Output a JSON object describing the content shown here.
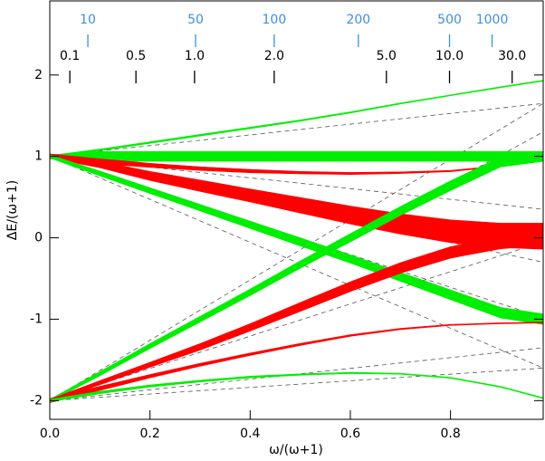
{
  "chart_data": {
    "type": "line",
    "xlabel": "ω/(ω+1)",
    "ylabel": "ΔE/(ω+1)",
    "xlim": [
      0,
      0.985
    ],
    "ylim": [
      -2.23,
      2.91
    ],
    "xticks": [
      {
        "value": 0,
        "label": "0.0"
      },
      {
        "value": 0.2,
        "label": "0.2"
      },
      {
        "value": 0.4,
        "label": "0.4"
      },
      {
        "value": 0.6,
        "label": "0.6"
      },
      {
        "value": 0.8,
        "label": "0.8"
      }
    ],
    "yticks": [
      -2,
      -1,
      0,
      1,
      2
    ],
    "top_ticks": {
      "color": "#000000",
      "ticks": [
        {
          "value": 0.04,
          "label": "0.1"
        },
        {
          "value": 0.172,
          "label": "0.5"
        },
        {
          "value": 0.289,
          "label": "1.0"
        },
        {
          "value": 0.448,
          "label": "2.0"
        },
        {
          "value": 0.672,
          "label": "5.0"
        },
        {
          "value": 0.798,
          "label": "10.0"
        },
        {
          "value": 0.923,
          "label": "30.0"
        }
      ]
    },
    "top_ticks2": {
      "color": "#3d8fe0",
      "ticks": [
        {
          "value": 0.076,
          "label": "10"
        },
        {
          "value": 0.291,
          "label": "50"
        },
        {
          "value": 0.448,
          "label": "100"
        },
        {
          "value": 0.616,
          "label": "200"
        },
        {
          "value": 0.798,
          "label": "500"
        },
        {
          "value": 0.883,
          "label": "1000"
        }
      ]
    },
    "x": [
      0,
      0.1,
      0.2,
      0.3,
      0.4,
      0.5,
      0.6,
      0.7,
      0.8,
      0.9,
      0.985
    ],
    "bands": [
      {
        "color": "#00ee00",
        "values": [
          1,
          1,
          1,
          1,
          1,
          1,
          1,
          1,
          1,
          1,
          1
        ],
        "widths": [
          0.04,
          0.12,
          0.12,
          0.12,
          0.12,
          0.12,
          0.12,
          0.12,
          0.12,
          0.12,
          0.12
        ]
      },
      {
        "color": "#00ee00",
        "values": [
          1,
          1.08,
          1.17,
          1.26,
          1.35,
          1.44,
          1.54,
          1.65,
          1.75,
          1.85,
          1.93
        ],
        "widths": [
          0.02,
          0.02,
          0.02,
          0.02,
          0.018,
          0.016,
          0.014,
          0.012,
          0.01,
          0.008,
          0.006
        ]
      },
      {
        "color": "#ff0000",
        "values": [
          1,
          0.9,
          0.76,
          0.64,
          0.52,
          0.4,
          0.28,
          0.17,
          0.08,
          0.03,
          0.02
        ],
        "widths": [
          0.04,
          0.08,
          0.11,
          0.14,
          0.16,
          0.19,
          0.22,
          0.25,
          0.28,
          0.3,
          0.32
        ]
      },
      {
        "color": "#ff0000",
        "values": [
          1,
          0.94,
          0.89,
          0.85,
          0.82,
          0.8,
          0.79,
          0.8,
          0.82,
          0.88,
          0.95
        ],
        "widths": [
          0.06,
          0.06,
          0.05,
          0.045,
          0.04,
          0.03,
          0.025,
          0.02,
          0.015,
          0.01,
          0.008
        ]
      },
      {
        "color": "#00ee00",
        "values": [
          1,
          0.79,
          0.58,
          0.37,
          0.16,
          -0.05,
          -0.26,
          -0.48,
          -0.7,
          -0.92,
          -1.0
        ],
        "widths": [
          0.04,
          0.06,
          0.07,
          0.08,
          0.09,
          0.1,
          0.1,
          0.11,
          0.12,
          0.13,
          0.13
        ]
      },
      {
        "color": "#00ee00",
        "values": [
          -2,
          -1.67,
          -1.33,
          -1.0,
          -0.67,
          -0.33,
          0.0,
          0.33,
          0.64,
          0.93,
          1.0
        ],
        "widths": [
          0.03,
          0.05,
          0.06,
          0.07,
          0.08,
          0.09,
          0.1,
          0.11,
          0.12,
          0.12,
          0.12
        ]
      },
      {
        "color": "#ff0000",
        "values": [
          -2,
          -1.78,
          -1.56,
          -1.34,
          -1.1,
          -0.85,
          -0.6,
          -0.37,
          -0.18,
          -0.06,
          -0.02
        ],
        "widths": [
          0.03,
          0.05,
          0.06,
          0.08,
          0.09,
          0.11,
          0.12,
          0.13,
          0.14,
          0.15,
          0.15
        ]
      },
      {
        "color": "#ff0000",
        "values": [
          -2,
          -1.85,
          -1.7,
          -1.56,
          -1.43,
          -1.31,
          -1.2,
          -1.12,
          -1.07,
          -1.05,
          -1.04
        ],
        "widths": [
          0.05,
          0.05,
          0.04,
          0.035,
          0.03,
          0.025,
          0.02,
          0.015,
          0.012,
          0.01,
          0.008
        ]
      },
      {
        "color": "#00ee00",
        "values": [
          -2,
          -1.9,
          -1.82,
          -1.76,
          -1.71,
          -1.68,
          -1.66,
          -1.67,
          -1.72,
          -1.83,
          -1.97
        ],
        "widths": [
          0.03,
          0.03,
          0.025,
          0.022,
          0.02,
          0.018,
          0.015,
          0.012,
          0.01,
          0.008,
          0.006
        ]
      }
    ],
    "dashed": {
      "color": "#555555",
      "x": [
        0,
        0.985
      ],
      "lines": [
        [
          1,
          1.65
        ],
        [
          1,
          1
        ],
        [
          1,
          0.35
        ],
        [
          1,
          -0.3
        ],
        [
          1,
          -0.98
        ],
        [
          1,
          -1.6
        ],
        [
          -2,
          1.65
        ],
        [
          -2,
          1.3
        ],
        [
          -2,
          -0.05
        ],
        [
          -2,
          -1.35
        ],
        [
          -2,
          -1.6
        ]
      ]
    }
  }
}
